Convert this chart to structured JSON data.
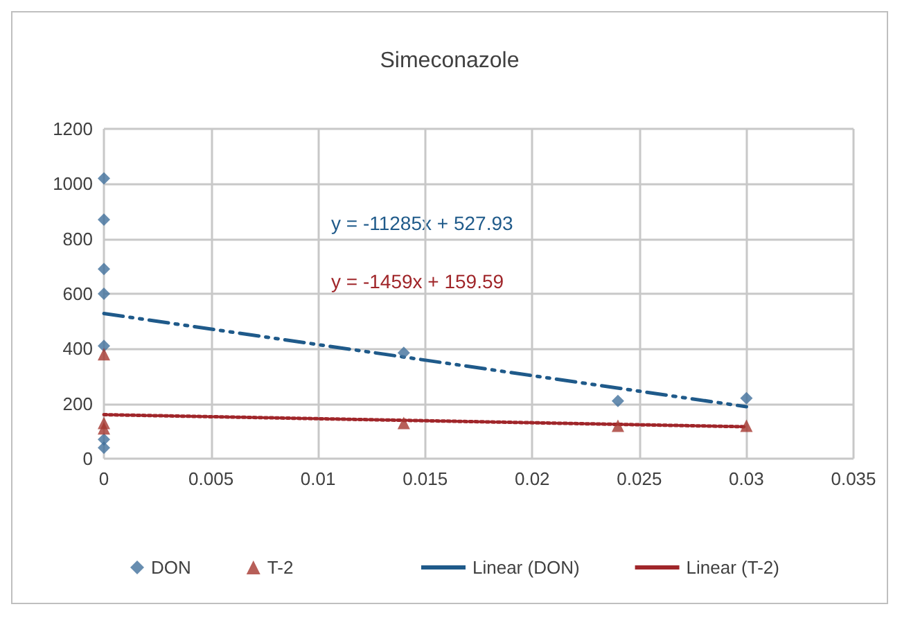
{
  "chart_data": {
    "type": "scatter",
    "title": "Simeconazole",
    "xlim": [
      0,
      0.035
    ],
    "xticks": [
      0,
      0.005,
      0.01,
      0.015,
      0.02,
      0.025,
      0.03,
      0.035
    ],
    "ylim": [
      0,
      1200
    ],
    "yticks": [
      0,
      200,
      400,
      600,
      800,
      1000,
      1200
    ],
    "grid": true,
    "legend": "bottom",
    "series": [
      {
        "name": "DON",
        "color": "#41719c",
        "marker": "diamond",
        "x": [
          0,
          0,
          0,
          0,
          0,
          0,
          0,
          0.014,
          0.024,
          0.03
        ],
        "values": [
          1020,
          870,
          690,
          600,
          410,
          70,
          40,
          385,
          210,
          220
        ]
      },
      {
        "name": "T-2",
        "color": "#a5372f",
        "marker": "triangle",
        "x": [
          0,
          0,
          0,
          0.014,
          0.024,
          0.03
        ],
        "values": [
          380,
          130,
          110,
          130,
          120,
          120
        ]
      },
      {
        "name": "Linear (DON)",
        "type": "line",
        "color": "#1f5a8a",
        "line_style": "dashed",
        "marker": "none",
        "x": [
          0,
          0.03
        ],
        "values": [
          528,
          189
        ]
      },
      {
        "name": "Linear (T-2)",
        "type": "line",
        "color": "#a0262a",
        "line_style": "dotted",
        "marker": "none",
        "x": [
          0,
          0.03
        ],
        "values": [
          160,
          116
        ]
      }
    ],
    "annotations": [
      "y = -11285x + 527.93",
      "y = -1459x + 159.59"
    ]
  }
}
